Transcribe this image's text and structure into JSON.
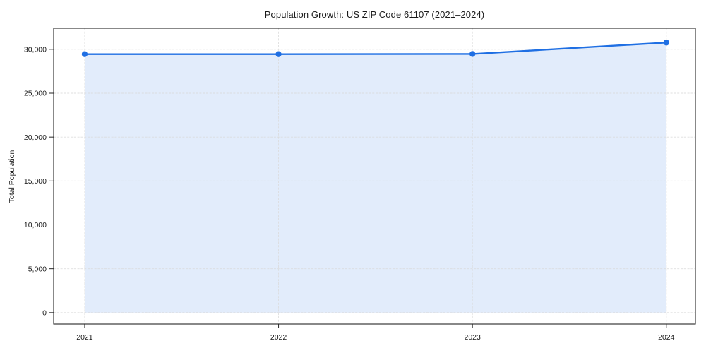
{
  "figure": {
    "background_color": "#ffffff",
    "plot_background_color": "#ffffff",
    "spine_color": "#262626",
    "grid_color": "#d9d9d9"
  },
  "chart_data": {
    "type": "area",
    "title": "Population Growth: US ZIP Code 61107 (2021–2024)",
    "xlabel": "",
    "ylabel": "Total Population",
    "x": [
      2021,
      2022,
      2023,
      2024
    ],
    "x_tick_labels": [
      "2021",
      "2022",
      "2023",
      "2024"
    ],
    "series": [
      {
        "name": "Total Population",
        "values": [
          29450,
          29450,
          29470,
          30770
        ],
        "line_color": "#1f6fe3",
        "fill_color": "#1f6fe3",
        "fill_opacity": 0.13,
        "marker": "circle"
      }
    ],
    "y_ticks": [
      0,
      5000,
      10000,
      15000,
      20000,
      25000,
      30000
    ],
    "y_tick_labels": [
      "0",
      "5,000",
      "10,000",
      "15,000",
      "20,000",
      "25,000",
      "30,000"
    ],
    "xlim": [
      2020.84,
      2024.15
    ],
    "ylim": [
      -1300,
      32400
    ],
    "grid": "both, dashed",
    "legend_position": "none"
  }
}
